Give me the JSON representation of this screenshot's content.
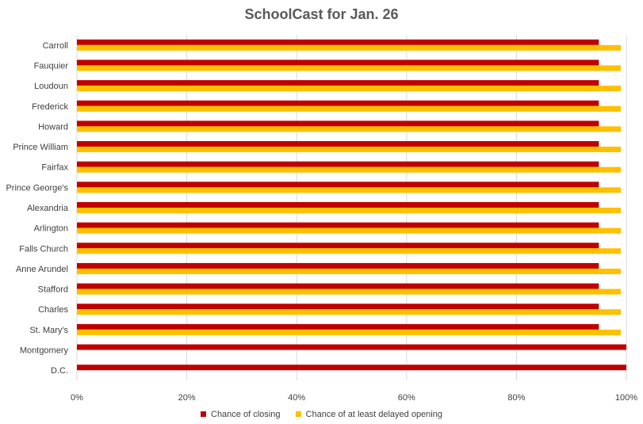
{
  "chart_data": {
    "type": "bar",
    "orientation": "horizontal",
    "title": "SchoolCast for Jan. 26",
    "categories": [
      "Carroll",
      "Fauquier",
      "Loudoun",
      "Frederick",
      "Howard",
      "Prince William",
      "Fairfax",
      "Prince George's",
      "Alexandria",
      "Arlington",
      "Falls Church",
      "Anne Arundel",
      "Stafford",
      "Charles",
      "St. Mary's",
      "Montgomery",
      "D.C."
    ],
    "series": [
      {
        "name": "Chance of closing",
        "color": "#C00000",
        "values": [
          95,
          95,
          95,
          95,
          95,
          95,
          95,
          95,
          95,
          95,
          95,
          95,
          95,
          95,
          95,
          100,
          100
        ]
      },
      {
        "name": "Chance of at least delayed opening",
        "color": "#FFC000",
        "values": [
          99,
          99,
          99,
          99,
          99,
          99,
          99,
          99,
          99,
          99,
          99,
          99,
          99,
          99,
          99,
          null,
          null
        ]
      }
    ],
    "xlim": [
      0,
      100
    ],
    "xticks": [
      "0%",
      "20%",
      "40%",
      "60%",
      "80%",
      "100%"
    ],
    "xlabel": "",
    "ylabel": "",
    "grid": true,
    "legend_position": "bottom"
  }
}
